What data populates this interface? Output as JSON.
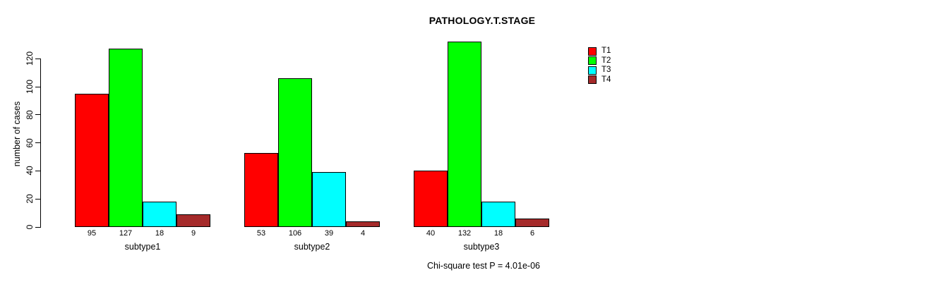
{
  "chart_data": {
    "type": "bar",
    "title": "PATHOLOGY.T.STAGE",
    "ylabel": "number of cases",
    "xlabel": "",
    "categories": [
      "subtype1",
      "subtype2",
      "subtype3"
    ],
    "series": [
      {
        "name": "T1",
        "color": "#ff0000",
        "values": [
          95,
          53,
          40
        ]
      },
      {
        "name": "T2",
        "color": "#00ff00",
        "values": [
          127,
          106,
          132
        ]
      },
      {
        "name": "T3",
        "color": "#00ffff",
        "values": [
          18,
          39,
          18
        ]
      },
      {
        "name": "T4",
        "color": "#a52a2a",
        "values": [
          9,
          4,
          6
        ]
      }
    ],
    "y_ticks": [
      0,
      20,
      40,
      60,
      80,
      100,
      120
    ],
    "ylim": [
      0,
      132
    ],
    "bar_value_labels_shown": true,
    "grid": false,
    "legend_position": "right-outside",
    "annotation": "Chi-square test P = 4.01e-06"
  },
  "style": {
    "background_color": "#ffffff",
    "axis_color": "#000000",
    "bar_border_color": "#000000"
  }
}
